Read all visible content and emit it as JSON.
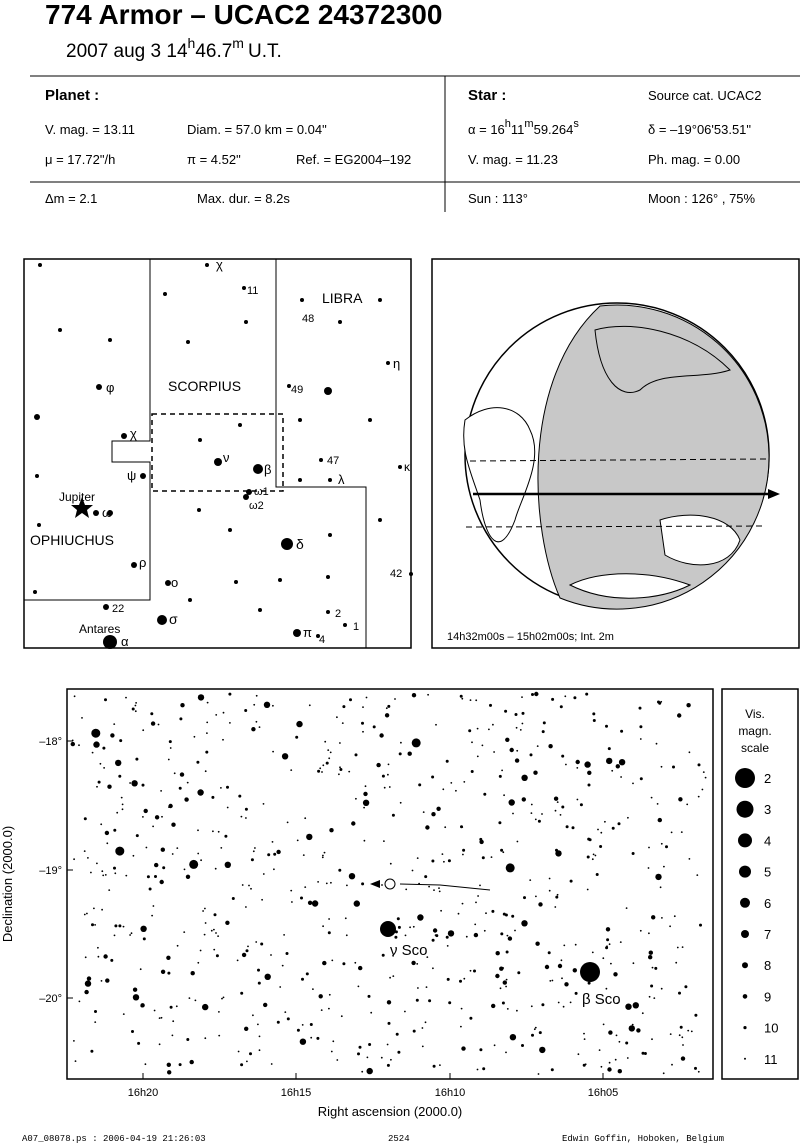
{
  "header": {
    "title": "774 Armor  –  UCAC2 24372300",
    "date": {
      "main": "2007 aug  3  14",
      "h": "h",
      "min": "46.7",
      "m": "m",
      "ut": "U.T."
    }
  },
  "planet": {
    "label": "Planet :",
    "vmag": "V. mag. = 13.11",
    "diam": "Diam. = 57.0 km = 0.04\"",
    "mu": "μ =  17.72\"/h",
    "pi": "π =  4.52\"",
    "ref": "Ref. = EG2004–192",
    "dm": "Δm = 2.1",
    "maxdur": "Max. dur. = 8.2s"
  },
  "star": {
    "label": "Star :",
    "source": "Source cat.  UCAC2",
    "alpha": {
      "main": "α = 16",
      "h": "h",
      "min": "11",
      "m": "m",
      "sec": "59.264",
      "s": "s"
    },
    "delta": "δ = –19°06'53.51\"",
    "vmag": "V. mag. = 11.23",
    "phmag": "Ph. mag. =  0.00",
    "sun": "Sun : 113°",
    "moon": "Moon : 126° , 75%"
  },
  "map": {
    "labels": [
      "χ",
      "11",
      "LIBRA",
      "48",
      "η",
      "SCORPIUS",
      "φ",
      "49",
      "χ",
      "ν",
      "β",
      "47",
      "κ",
      "ψ",
      "λ",
      "ω1",
      "ω2",
      "Jupiter",
      "ω",
      "OPHIUCHUS",
      "δ",
      "ρ",
      "ο",
      "42",
      "22",
      "σ",
      "2",
      "1",
      "Antares",
      "α",
      "π",
      "4"
    ]
  },
  "globe": {
    "caption": "14h32m00s – 15h02m00s; Int.  2m"
  },
  "finder": {
    "yticks": [
      "–18°",
      "–19°",
      "–20°"
    ],
    "xticks": [
      "16h20",
      "16h15",
      "16h10",
      "16h05"
    ],
    "xlabel": "Right ascension (2000.0)",
    "ylabel": "Declination (2000.0)",
    "stars": [
      "ν Sco",
      "β Sco"
    ]
  },
  "scale": {
    "title": [
      "Vis.",
      "magn.",
      "scale"
    ],
    "values": [
      2,
      3,
      4,
      5,
      6,
      7,
      8,
      9,
      10,
      11
    ]
  },
  "footer": {
    "file": "A07_08078.ps : 2006-04-19 21:26:03",
    "number": "2524",
    "author": "Edwin Goffin, Hoboken, Belgium"
  }
}
